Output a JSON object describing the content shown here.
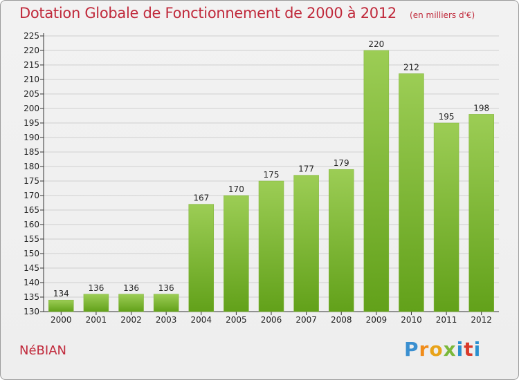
{
  "title": "Dotation Globale de Fonctionnement de 2000 à 2012",
  "subtitle": "(en milliers d'€)",
  "commune": "NéBIAN",
  "logo": "Proxiti",
  "colors": {
    "title": "#c0293b",
    "bar_top": "#9ccd55",
    "bar_bottom": "#62a11a",
    "gridline": "#cfcfcf"
  },
  "chart_data": {
    "type": "bar",
    "title": "Dotation Globale de Fonctionnement de 2000 à 2012",
    "subtitle": "(en milliers d'€)",
    "categories": [
      "2000",
      "2001",
      "2002",
      "2003",
      "2004",
      "2005",
      "2006",
      "2007",
      "2008",
      "2009",
      "2010",
      "2011",
      "2012"
    ],
    "values": [
      134,
      136,
      136,
      136,
      167,
      170,
      175,
      177,
      179,
      220,
      212,
      195,
      198
    ],
    "ylim": [
      130,
      225
    ],
    "yticks": [
      130,
      135,
      140,
      145,
      150,
      155,
      160,
      165,
      170,
      175,
      180,
      185,
      190,
      195,
      200,
      205,
      210,
      215,
      220,
      225
    ],
    "grid": true,
    "xlabel": "",
    "ylabel": ""
  }
}
